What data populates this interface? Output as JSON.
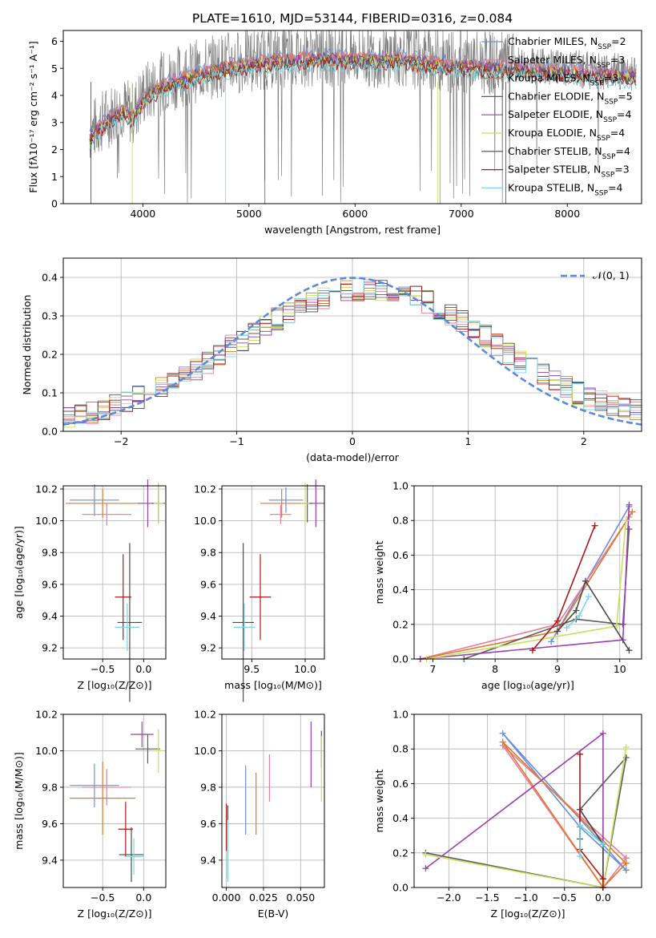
{
  "title": "PLATE=1610, MJD=53144, FIBERID=0316, z=0.084",
  "colors": {
    "c1": "#6a8fd8",
    "c2": "#e87a9a",
    "c3": "#e07a2a",
    "c4": "#5c5c5c",
    "c5": "#9a3fb0",
    "c6": "#c8e05a",
    "c7": "#4a4a4a",
    "c8": "#b01818",
    "c9": "#7ad8e0",
    "gauss": "#5b8bd8",
    "data": "#808080"
  },
  "legend": [
    {
      "name": "Chabrier MILES, N",
      "sub": "SSP",
      "tail": "=2",
      "color": "#6a8fd8"
    },
    {
      "name": "Salpeter MILES, N",
      "sub": "SSP",
      "tail": "=3",
      "color": "#e87a9a"
    },
    {
      "name": "Kroupa MILES, N",
      "sub": "SSP",
      "tail": "=3",
      "color": "#e07a2a"
    },
    {
      "name": "Chabrier ELODIE, N",
      "sub": "SSP",
      "tail": "=5",
      "color": "#5c5c5c"
    },
    {
      "name": "Salpeter ELODIE, N",
      "sub": "SSP",
      "tail": "=4",
      "color": "#9a3fb0"
    },
    {
      "name": "Kroupa ELODIE, N",
      "sub": "SSP",
      "tail": "=4",
      "color": "#c8e05a"
    },
    {
      "name": "Chabrier STELIB, N",
      "sub": "SSP",
      "tail": "=4",
      "color": "#4a4a4a"
    },
    {
      "name": "Salpeter STELIB, N",
      "sub": "SSP",
      "tail": "=3",
      "color": "#b01818"
    },
    {
      "name": "Kroupa STELIB, N",
      "sub": "SSP",
      "tail": "=4",
      "color": "#7ad8e0"
    }
  ],
  "chart_data": [
    {
      "type": "line",
      "xlabel": "wavelength [Angstrom, rest frame]",
      "ylabel": "Flux [fλ10⁻¹⁷ erg cm⁻² s⁻¹ A⁻¹]",
      "xlim": [
        3250,
        8700
      ],
      "ylim": [
        0,
        6.4
      ],
      "xticks": [
        "4000",
        "5000",
        "6000",
        "7000",
        "8000"
      ],
      "yticks": [
        "0",
        "1",
        "2",
        "3",
        "4",
        "5",
        "6"
      ],
      "continuum": {
        "x": [
          3500,
          3600,
          3700,
          3800,
          3900,
          4000,
          4100,
          4200,
          4400,
          4600,
          4800,
          5000,
          5200,
          5400,
          5600,
          5800,
          6000,
          6200,
          6400,
          6600,
          6800,
          7000,
          7200,
          7400,
          7600,
          7800,
          8000,
          8200,
          8400,
          8700
        ],
        "y": [
          2.6,
          3.0,
          3.3,
          3.6,
          3.3,
          4.0,
          4.3,
          4.5,
          4.8,
          5.0,
          5.2,
          5.3,
          5.4,
          5.45,
          5.5,
          5.5,
          5.5,
          5.45,
          5.5,
          5.4,
          5.3,
          5.25,
          5.2,
          5.15,
          5.1,
          5.05,
          5.0,
          4.95,
          4.9,
          4.85
        ]
      }
    },
    {
      "type": "bar",
      "xlabel": "(data-model)/error",
      "ylabel": "Normed distribution",
      "xlim": [
        -2.5,
        2.5
      ],
      "ylim": [
        0,
        0.45
      ],
      "xticks": [
        "−2",
        "−1",
        "0",
        "1",
        "2"
      ],
      "yticks": [
        "0.0",
        "0.1",
        "0.2",
        "0.3",
        "0.4"
      ],
      "legend_label": "𝒩(0, 1)",
      "legend_position": "top-right",
      "histogram_profile_x": [
        -2.5,
        -2.0,
        -1.5,
        -1.0,
        -0.5,
        0.0,
        0.5,
        1.0,
        1.5,
        2.0,
        2.5
      ],
      "histogram_profile_y": [
        0.03,
        0.07,
        0.13,
        0.23,
        0.32,
        0.37,
        0.36,
        0.28,
        0.17,
        0.09,
        0.05
      ]
    },
    {
      "type": "scatter",
      "name": "age-vs-Z",
      "xlabel": "Z [log₁₀(Z/Z⊙)]",
      "ylabel": "age  [log₁₀(age/yr)]",
      "xlim": [
        -0.98,
        0.27
      ],
      "ylim": [
        9.13,
        10.22
      ],
      "xticks": [
        "−0.5",
        "0.0"
      ],
      "xtick_values": [
        -0.5,
        0.0
      ],
      "yticks": [
        "9.2",
        "9.4",
        "9.6",
        "9.8",
        "10.0",
        "10.2"
      ],
      "ytick_values": [
        9.2,
        9.4,
        9.6,
        9.8,
        10.0,
        10.2
      ],
      "points": [
        {
          "x": -0.6,
          "y": 10.13,
          "xe": 0.3,
          "ye": 0.1,
          "c": "c1"
        },
        {
          "x": -0.45,
          "y": 10.04,
          "xe": 0.3,
          "ye": 0.07,
          "c": "c2"
        },
        {
          "x": -0.5,
          "y": 10.11,
          "xe": 0.45,
          "ye": 0.09,
          "c": "c3"
        },
        {
          "x": 0.18,
          "y": 10.11,
          "xe": 0.08,
          "ye": 0.12,
          "c": "c4"
        },
        {
          "x": 0.05,
          "y": 10.11,
          "xe": 0.12,
          "ye": 0.15,
          "c": "c5"
        },
        {
          "x": 0.18,
          "y": 10.11,
          "xe": 0.06,
          "ye": 0.13,
          "c": "c6"
        },
        {
          "x": -0.17,
          "y": 9.36,
          "xe": 0.15,
          "ye": 0.5,
          "c": "c7"
        },
        {
          "x": -0.25,
          "y": 9.52,
          "xe": 0.1,
          "ye": 0.27,
          "c": "c8"
        },
        {
          "x": -0.2,
          "y": 9.33,
          "xe": 0.15,
          "ye": 0.15,
          "c": "c9"
        }
      ]
    },
    {
      "type": "scatter",
      "name": "age-vs-mass",
      "xlabel": "mass [log₁₀(M/M⊙)]",
      "ylabel": "",
      "xlim": [
        9.22,
        10.18
      ],
      "ylim": [
        9.13,
        10.22
      ],
      "xticks": [
        "9.5",
        "10.0"
      ],
      "xtick_values": [
        9.5,
        10.0
      ],
      "yticks": [
        "9.2",
        "9.4",
        "9.6",
        "9.8",
        "10.0",
        "10.2"
      ],
      "ytick_values": [
        9.2,
        9.4,
        9.6,
        9.8,
        10.0,
        10.2
      ],
      "points": [
        {
          "x": 9.82,
          "y": 10.13,
          "xe": 0.16,
          "ye": 0.08,
          "c": "c1"
        },
        {
          "x": 9.77,
          "y": 10.04,
          "xe": 0.1,
          "ye": 0.06,
          "c": "c2"
        },
        {
          "x": 9.78,
          "y": 10.11,
          "xe": 0.2,
          "ye": 0.09,
          "c": "c3"
        },
        {
          "x": 10.02,
          "y": 10.11,
          "xe": 0.05,
          "ye": 0.12,
          "c": "c4"
        },
        {
          "x": 10.1,
          "y": 10.11,
          "xe": 0.08,
          "ye": 0.15,
          "c": "c5"
        },
        {
          "x": 10.0,
          "y": 10.11,
          "xe": 0.04,
          "ye": 0.13,
          "c": "c6"
        },
        {
          "x": 9.42,
          "y": 9.36,
          "xe": 0.1,
          "ye": 0.5,
          "c": "c7"
        },
        {
          "x": 9.58,
          "y": 9.52,
          "xe": 0.1,
          "ye": 0.27,
          "c": "c8"
        },
        {
          "x": 9.43,
          "y": 9.33,
          "xe": 0.1,
          "ye": 0.15,
          "c": "c9"
        }
      ]
    },
    {
      "type": "line",
      "name": "mass-weight-vs-age",
      "xlabel": "age  [log₁₀(age/yr)]",
      "ylabel": "mass weight",
      "xlim": [
        6.7,
        10.35
      ],
      "ylim": [
        0,
        1
      ],
      "xticks": [
        "7",
        "8",
        "9",
        "10"
      ],
      "xtick_values": [
        7,
        8,
        9,
        10
      ],
      "yticks": [
        "0.0",
        "0.2",
        "0.4",
        "0.6",
        "0.8",
        "1.0"
      ],
      "ytick_values": [
        0,
        0.2,
        0.4,
        0.6,
        0.8,
        1.0
      ],
      "series": [
        {
          "c": "c1",
          "x": [
            8.9,
            10.15
          ],
          "y": [
            0.1,
            0.88
          ]
        },
        {
          "c": "c2",
          "x": [
            6.8,
            9.0,
            10.15
          ],
          "y": [
            0.0,
            0.2,
            0.82
          ]
        },
        {
          "c": "c3",
          "x": [
            6.8,
            9.0,
            10.2
          ],
          "y": [
            0.0,
            0.16,
            0.85
          ]
        },
        {
          "c": "c4",
          "x": [
            7.5,
            9.3,
            10.05,
            10.15
          ],
          "y": [
            0.0,
            0.23,
            0.2,
            0.75
          ]
        },
        {
          "c": "c5",
          "x": [
            6.8,
            10.05,
            10.15
          ],
          "y": [
            0.0,
            0.11,
            0.89
          ]
        },
        {
          "c": "c6",
          "x": [
            6.9,
            9.95,
            10.1
          ],
          "y": [
            0.0,
            0.19,
            0.8
          ]
        },
        {
          "c": "c7",
          "x": [
            9.0,
            9.3,
            9.45,
            10.15
          ],
          "y": [
            0.16,
            0.28,
            0.45,
            0.05
          ]
        },
        {
          "c": "c8",
          "x": [
            8.6,
            9.0,
            9.6
          ],
          "y": [
            0.05,
            0.22,
            0.77
          ]
        },
        {
          "c": "c9",
          "x": [
            9.15,
            9.35,
            9.5
          ],
          "y": [
            0.18,
            0.25,
            0.36
          ]
        }
      ]
    },
    {
      "type": "scatter",
      "name": "mass-vs-Z",
      "xlabel": "Z [log₁₀(Z/Z⊙)]",
      "ylabel": "mass [log₁₀(M/M⊙)]",
      "xlim": [
        -0.98,
        0.27
      ],
      "ylim": [
        9.25,
        10.2
      ],
      "xticks": [
        "−0.5",
        "0.0"
      ],
      "xtick_values": [
        -0.5,
        0.0
      ],
      "yticks": [
        "9.4",
        "9.6",
        "9.8",
        "10.0",
        "10.2"
      ],
      "ytick_values": [
        9.4,
        9.6,
        9.8,
        10.0,
        10.2
      ],
      "points": [
        {
          "x": -0.6,
          "y": 9.81,
          "xe": 0.3,
          "ye": 0.12,
          "c": "c1"
        },
        {
          "x": -0.45,
          "y": 9.8,
          "xe": 0.3,
          "ye": 0.1,
          "c": "c2"
        },
        {
          "x": -0.5,
          "y": 9.74,
          "xe": 0.4,
          "ye": 0.2,
          "c": "c3"
        },
        {
          "x": 0.05,
          "y": 10.01,
          "xe": 0.15,
          "ye": 0.08,
          "c": "c4"
        },
        {
          "x": -0.02,
          "y": 10.09,
          "xe": 0.14,
          "ye": 0.07,
          "c": "c5"
        },
        {
          "x": 0.18,
          "y": 10.0,
          "xe": 0.06,
          "ye": 0.12,
          "c": "c6"
        },
        {
          "x": -0.15,
          "y": 9.43,
          "xe": 0.15,
          "ye": 0.15,
          "c": "c7"
        },
        {
          "x": -0.22,
          "y": 9.57,
          "xe": 0.09,
          "ye": 0.15,
          "c": "c8"
        },
        {
          "x": -0.12,
          "y": 9.42,
          "xe": 0.12,
          "ye": 0.1,
          "c": "c9"
        }
      ]
    },
    {
      "type": "scatter",
      "name": "mass-vs-EBV",
      "xlabel": "E(B-V)",
      "ylabel": "",
      "xlim": [
        -0.003,
        0.066
      ],
      "ylim": [
        9.25,
        10.2
      ],
      "xticks": [
        "0.000",
        "0.025",
        "0.050"
      ],
      "xtick_values": [
        0.0,
        0.025,
        0.05
      ],
      "yticks": [
        "9.4",
        "9.6",
        "9.8",
        "10.0",
        "10.2"
      ],
      "ytick_values": [
        9.4,
        9.6,
        9.8,
        10.0,
        10.2
      ],
      "points": [
        {
          "x": 0.013,
          "y": 9.73,
          "xe": 0,
          "ye": 0.19,
          "c": "c1"
        },
        {
          "x": 0.029,
          "y": 9.85,
          "xe": 0,
          "ye": 0.13,
          "c": "c2"
        },
        {
          "x": 0.02,
          "y": 9.71,
          "xe": 0,
          "ye": 0.17,
          "c": "c3"
        },
        {
          "x": 0.064,
          "y": 10.01,
          "xe": 0,
          "ye": 0.1,
          "c": "c4"
        },
        {
          "x": 0.057,
          "y": 9.98,
          "xe": 0,
          "ye": 0.18,
          "c": "c5"
        },
        {
          "x": 0.064,
          "y": 9.9,
          "xe": 0,
          "ye": 0.18,
          "c": "c6"
        },
        {
          "x": 0.001,
          "y": 9.5,
          "xe": 0,
          "ye": 0.2,
          "c": "c7"
        },
        {
          "x": 0.0,
          "y": 9.58,
          "xe": 0,
          "ye": 0.13,
          "c": "c8"
        },
        {
          "x": 0.001,
          "y": 9.45,
          "xe": 0,
          "ye": 0.17,
          "c": "c9"
        }
      ]
    },
    {
      "type": "line",
      "name": "mass-weight-vs-Z",
      "xlabel": "Z [log₁₀(Z/Z⊙)]",
      "ylabel": "mass weight",
      "xlim": [
        -2.45,
        0.5
      ],
      "ylim": [
        0,
        1
      ],
      "xticks": [
        "−2.0",
        "−1.5",
        "−1.0",
        "−0.5",
        "0.0"
      ],
      "xtick_values": [
        -2.0,
        -1.5,
        -1.0,
        -0.5,
        0.0
      ],
      "yticks": [
        "0.0",
        "0.2",
        "0.4",
        "0.6",
        "0.8",
        "1.0"
      ],
      "ytick_values": [
        0,
        0.2,
        0.4,
        0.6,
        0.8,
        1.0
      ],
      "series": [
        {
          "c": "c1",
          "x": [
            0.3,
            -1.3,
            -0.3,
            0.3
          ],
          "y": [
            0.1,
            0.89,
            0.35,
            0.1
          ]
        },
        {
          "c": "c2",
          "x": [
            0.3,
            -1.3,
            0.0,
            0.3
          ],
          "y": [
            0.17,
            0.82,
            0.0,
            0.17
          ]
        },
        {
          "c": "c3",
          "x": [
            0.3,
            -1.3,
            0.0,
            0.3
          ],
          "y": [
            0.14,
            0.84,
            0.0,
            0.14
          ]
        },
        {
          "c": "c4",
          "x": [
            -2.3,
            0.0,
            0.3,
            -0.3,
            0.0
          ],
          "y": [
            0.2,
            0.0,
            0.75,
            0.45,
            0.25
          ]
        },
        {
          "c": "c5",
          "x": [
            -2.3,
            0.0,
            0.0
          ],
          "y": [
            0.11,
            0.89,
            0.0
          ]
        },
        {
          "c": "c6",
          "x": [
            -2.3,
            0.0,
            0.3
          ],
          "y": [
            0.19,
            0.0,
            0.81
          ]
        },
        {
          "c": "c7",
          "x": [
            -0.3,
            -0.3,
            0.0,
            0.0
          ],
          "y": [
            0.28,
            0.45,
            0.25,
            0.05
          ]
        },
        {
          "c": "c8",
          "x": [
            -0.3,
            -0.3,
            0.0,
            0.0
          ],
          "y": [
            0.77,
            0.22,
            0.05,
            0.0
          ]
        },
        {
          "c": "c9",
          "x": [
            -0.3,
            -0.3,
            0.0
          ],
          "y": [
            0.18,
            0.36,
            0.25
          ]
        }
      ]
    }
  ]
}
